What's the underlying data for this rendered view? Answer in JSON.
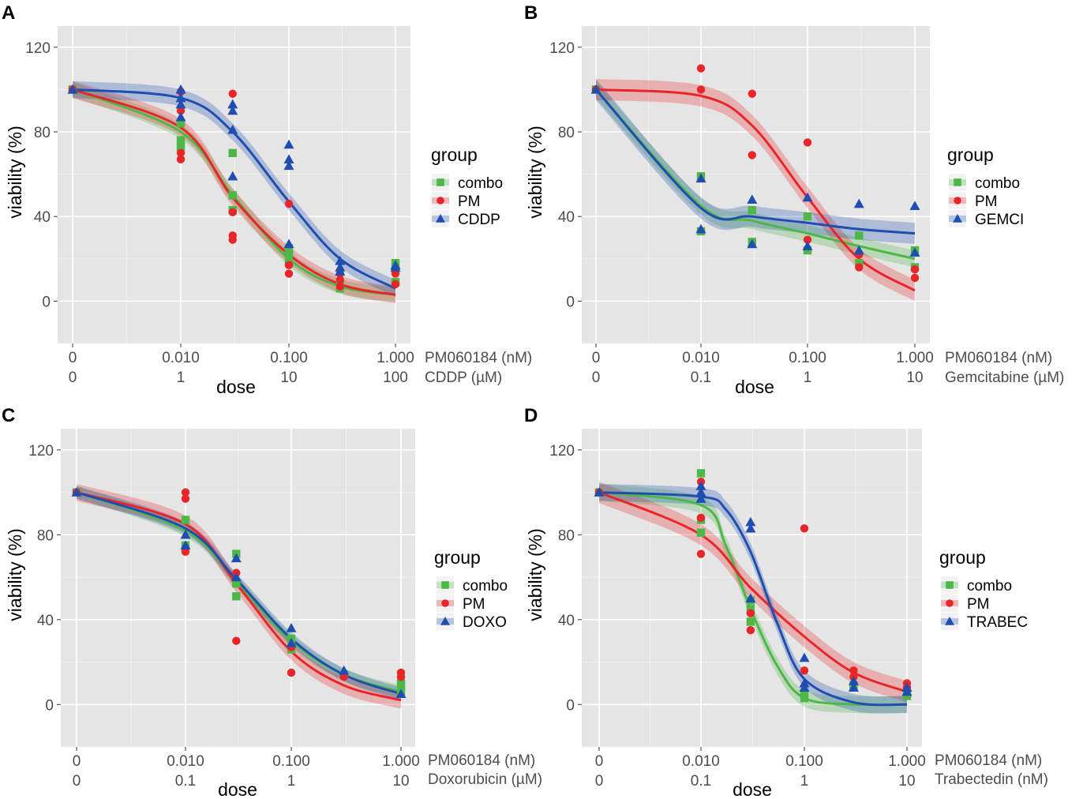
{
  "colors": {
    "combo": "#4db848",
    "PM": "#e8262a",
    "drug": "#1f4eb0",
    "background": "#e5e5e5"
  },
  "chart_data": [
    {
      "panel": "A",
      "type": "scatter",
      "xlabel": "dose",
      "ylabel": "viability (%)",
      "ylim": [
        -20,
        130
      ],
      "yticks": [
        0,
        40,
        80,
        120
      ],
      "xticks_top": [
        "0",
        "0.010",
        "0.100",
        "1.000"
      ],
      "xticks_top_label": "PM060184 (nM)",
      "xticks_bottom": [
        "0",
        "1",
        "10",
        "100"
      ],
      "xticks_bottom_label": "CDDP (µM)",
      "legend": {
        "title": "group",
        "items": [
          "combo",
          "PM",
          "CDDP"
        ]
      },
      "series": [
        {
          "name": "combo",
          "marker": "square",
          "color_key": "combo",
          "points": [
            [
              0,
              100
            ],
            [
              0,
              100
            ],
            [
              1,
              84
            ],
            [
              1,
              76
            ],
            [
              1,
              73
            ],
            [
              2,
              70
            ],
            [
              2,
              50
            ],
            [
              2,
              43
            ],
            [
              3,
              22
            ],
            [
              3,
              18
            ],
            [
              3,
              25
            ],
            [
              4,
              7
            ],
            [
              4,
              6
            ],
            [
              4,
              8
            ],
            [
              5,
              18
            ],
            [
              5,
              15
            ],
            [
              5,
              9
            ]
          ],
          "fit": [
            [
              0,
              100
            ],
            [
              1,
              80
            ],
            [
              2,
              50
            ],
            [
              3,
              20
            ],
            [
              4,
              7
            ],
            [
              5,
              3
            ]
          ],
          "band": 3.5
        },
        {
          "name": "PM",
          "marker": "circle",
          "color_key": "PM",
          "points": [
            [
              0,
              100
            ],
            [
              1,
              99
            ],
            [
              1,
              90
            ],
            [
              1,
              70
            ],
            [
              1,
              67
            ],
            [
              2,
              98
            ],
            [
              2,
              42
            ],
            [
              2,
              31
            ],
            [
              2,
              29
            ],
            [
              3,
              46
            ],
            [
              3,
              17
            ],
            [
              3,
              13
            ],
            [
              4,
              13
            ],
            [
              4,
              10
            ],
            [
              4,
              7
            ],
            [
              5,
              15
            ],
            [
              5,
              13
            ],
            [
              5,
              8
            ]
          ],
          "fit": [
            [
              0,
              100
            ],
            [
              1,
              82
            ],
            [
              2,
              49
            ],
            [
              3,
              22
            ],
            [
              4,
              8
            ],
            [
              5,
              3
            ]
          ],
          "band": 4
        },
        {
          "name": "CDDP",
          "marker": "triangle",
          "color_key": "drug",
          "points": [
            [
              0,
              100
            ],
            [
              1,
              100
            ],
            [
              1,
              96
            ],
            [
              1,
              93
            ],
            [
              1,
              87
            ],
            [
              2,
              93
            ],
            [
              2,
              90
            ],
            [
              2,
              81
            ],
            [
              2,
              59
            ],
            [
              3,
              74
            ],
            [
              3,
              67
            ],
            [
              3,
              64
            ],
            [
              3,
              27
            ],
            [
              4,
              19
            ],
            [
              4,
              16
            ],
            [
              4,
              14
            ],
            [
              5,
              17
            ],
            [
              5,
              16
            ]
          ],
          "fit": [
            [
              0,
              100
            ],
            [
              1,
              96
            ],
            [
              2,
              80
            ],
            [
              3,
              47
            ],
            [
              4,
              20
            ],
            [
              5,
              6
            ]
          ],
          "band": 4
        }
      ]
    },
    {
      "panel": "B",
      "type": "scatter",
      "xlabel": "dose",
      "ylabel": "viability (%)",
      "ylim": [
        -20,
        130
      ],
      "yticks": [
        0,
        40,
        80,
        120
      ],
      "xticks_top": [
        "0",
        "0.010",
        "0.100",
        "1.000"
      ],
      "xticks_top_label": "PM060184 (nM)",
      "xticks_bottom": [
        "0",
        "0.1",
        "1",
        "10"
      ],
      "xticks_bottom_label": "Gemcitabine (µM)",
      "legend": {
        "title": "group",
        "items": [
          "combo",
          "PM",
          "GEMCI"
        ]
      },
      "series": [
        {
          "name": "combo",
          "marker": "square",
          "color_key": "combo",
          "points": [
            [
              0,
              100
            ],
            [
              1,
              59
            ],
            [
              1,
              33
            ],
            [
              2,
              43
            ],
            [
              2,
              28
            ],
            [
              3,
              40
            ],
            [
              3,
              24
            ],
            [
              4,
              31
            ],
            [
              4,
              18
            ],
            [
              5,
              24
            ],
            [
              5,
              16
            ]
          ],
          "fit": [
            [
              0,
              100
            ],
            [
              1,
              45
            ],
            [
              2,
              38
            ],
            [
              3,
              32
            ],
            [
              4,
              26
            ],
            [
              5,
              20
            ]
          ],
          "band": 4
        },
        {
          "name": "PM",
          "marker": "circle",
          "color_key": "PM",
          "points": [
            [
              0,
              100
            ],
            [
              1,
              110
            ],
            [
              1,
              100
            ],
            [
              2,
              98
            ],
            [
              2,
              69
            ],
            [
              3,
              75
            ],
            [
              3,
              29
            ],
            [
              4,
              16
            ],
            [
              4,
              22
            ],
            [
              5,
              11
            ],
            [
              5,
              15
            ]
          ],
          "fit": [
            [
              0,
              100
            ],
            [
              1,
              97
            ],
            [
              2,
              83
            ],
            [
              3,
              49
            ],
            [
              4,
              20
            ],
            [
              5,
              5
            ]
          ],
          "band": 5
        },
        {
          "name": "GEMCI",
          "marker": "triangle",
          "color_key": "drug",
          "points": [
            [
              0,
              100
            ],
            [
              1,
              58
            ],
            [
              1,
              34
            ],
            [
              2,
              48
            ],
            [
              2,
              27
            ],
            [
              3,
              49
            ],
            [
              3,
              26
            ],
            [
              4,
              46
            ],
            [
              4,
              24
            ],
            [
              5,
              45
            ],
            [
              5,
              23
            ]
          ],
          "fit": [
            [
              0,
              100
            ],
            [
              1,
              44
            ],
            [
              2,
              40
            ],
            [
              3,
              37
            ],
            [
              4,
              34
            ],
            [
              5,
              32
            ]
          ],
          "band": 5
        }
      ]
    },
    {
      "panel": "C",
      "type": "scatter",
      "xlabel": "dose",
      "ylabel": "viability (%)",
      "ylim": [
        -20,
        130
      ],
      "yticks": [
        0,
        40,
        80,
        120
      ],
      "xticks_top": [
        "0",
        "0.010",
        "0.100",
        "1.000"
      ],
      "xticks_top_label": "PM060184 (nM)",
      "xticks_bottom": [
        "0",
        "0.1",
        "1",
        "10"
      ],
      "xticks_bottom_label": "Doxorubicin (µM)",
      "legend": {
        "title": "group",
        "items": [
          "combo",
          "PM",
          "DOXO"
        ]
      },
      "series": [
        {
          "name": "combo",
          "marker": "square",
          "color_key": "combo",
          "points": [
            [
              0,
              100
            ],
            [
              1,
              87
            ],
            [
              1,
              75
            ],
            [
              2,
              71
            ],
            [
              2,
              57
            ],
            [
              2,
              51
            ],
            [
              3,
              31
            ],
            [
              3,
              26
            ],
            [
              4,
              14
            ],
            [
              5,
              10
            ],
            [
              5,
              8
            ],
            [
              5,
              6
            ]
          ],
          "fit": [
            [
              0,
              100
            ],
            [
              1,
              82
            ],
            [
              2,
              58
            ],
            [
              3,
              30
            ],
            [
              4,
              14
            ],
            [
              5,
              6
            ]
          ],
          "band": 3
        },
        {
          "name": "PM",
          "marker": "circle",
          "color_key": "PM",
          "points": [
            [
              0,
              100
            ],
            [
              1,
              100
            ],
            [
              1,
              97
            ],
            [
              1,
              72
            ],
            [
              2,
              62
            ],
            [
              2,
              30
            ],
            [
              3,
              27
            ],
            [
              3,
              15
            ],
            [
              4,
              13
            ],
            [
              5,
              15
            ],
            [
              5,
              13
            ]
          ],
          "fit": [
            [
              0,
              100
            ],
            [
              1,
              85
            ],
            [
              2,
              57
            ],
            [
              3,
              25
            ],
            [
              4,
              9
            ],
            [
              5,
              2
            ]
          ],
          "band": 4
        },
        {
          "name": "DOXO",
          "marker": "triangle",
          "color_key": "drug",
          "points": [
            [
              0,
              100
            ],
            [
              1,
              80
            ],
            [
              1,
              75
            ],
            [
              2,
              69
            ],
            [
              2,
              60
            ],
            [
              3,
              36
            ],
            [
              3,
              29
            ],
            [
              4,
              16
            ],
            [
              5,
              5
            ]
          ],
          "fit": [
            [
              0,
              100
            ],
            [
              1,
              83
            ],
            [
              2,
              59
            ],
            [
              3,
              31
            ],
            [
              4,
              14
            ],
            [
              5,
              5
            ]
          ],
          "band": 3
        }
      ]
    },
    {
      "panel": "D",
      "type": "scatter",
      "xlabel": "dose",
      "ylabel": "viability (%)",
      "ylim": [
        -20,
        130
      ],
      "yticks": [
        0,
        40,
        80,
        120
      ],
      "xticks_top": [
        "0",
        "0.010",
        "0.100",
        "1.000"
      ],
      "xticks_top_label": "PM060184 (nM)",
      "xticks_bottom": [
        "0",
        "0.1",
        "1",
        "10"
      ],
      "xticks_bottom_label": "Trabectedin (nM)",
      "legend": {
        "title": "group",
        "items": [
          "combo",
          "PM",
          "TRABEC"
        ]
      },
      "series": [
        {
          "name": "combo",
          "marker": "square",
          "color_key": "combo",
          "points": [
            [
              0,
              100
            ],
            [
              1,
              109
            ],
            [
              1,
              87
            ],
            [
              1,
              81
            ],
            [
              2,
              49
            ],
            [
              2,
              45
            ],
            [
              2,
              39
            ],
            [
              3,
              3
            ],
            [
              3,
              5
            ],
            [
              4,
              9
            ],
            [
              4,
              8
            ],
            [
              5,
              5
            ],
            [
              5,
              4
            ]
          ],
          "fit": [
            [
              0,
              100
            ],
            [
              1,
              94
            ],
            [
              1.5,
              75
            ],
            [
              2,
              45
            ],
            [
              2.5,
              18
            ],
            [
              3,
              3
            ],
            [
              4,
              0
            ],
            [
              5,
              0
            ]
          ],
          "band": 4
        },
        {
          "name": "PM",
          "marker": "circle",
          "color_key": "PM",
          "points": [
            [
              0,
              100
            ],
            [
              1,
              105
            ],
            [
              1,
              88
            ],
            [
              1,
              71
            ],
            [
              2,
              43
            ],
            [
              2,
              35
            ],
            [
              3,
              83
            ],
            [
              3,
              16
            ],
            [
              4,
              16
            ],
            [
              4,
              13
            ],
            [
              5,
              10
            ],
            [
              5,
              8
            ]
          ],
          "fit": [
            [
              0,
              100
            ],
            [
              1,
              80
            ],
            [
              2,
              55
            ],
            [
              3,
              32
            ],
            [
              4,
              15
            ],
            [
              5,
              6
            ]
          ],
          "band": 5
        },
        {
          "name": "TRABEC",
          "marker": "triangle",
          "color_key": "drug",
          "points": [
            [
              0,
              100
            ],
            [
              1,
              103
            ],
            [
              1,
              100
            ],
            [
              1,
              97
            ],
            [
              2,
              86
            ],
            [
              2,
              83
            ],
            [
              2,
              50
            ],
            [
              3,
              22
            ],
            [
              3,
              10
            ],
            [
              3,
              8
            ],
            [
              4,
              11
            ],
            [
              4,
              8
            ],
            [
              5,
              8
            ],
            [
              5,
              6
            ]
          ],
          "fit": [
            [
              0,
              100
            ],
            [
              1,
              98
            ],
            [
              1.5,
              92
            ],
            [
              2,
              72
            ],
            [
              2.5,
              38
            ],
            [
              3,
              12
            ],
            [
              4,
              1
            ],
            [
              5,
              0
            ]
          ],
          "band": 4
        }
      ]
    }
  ]
}
